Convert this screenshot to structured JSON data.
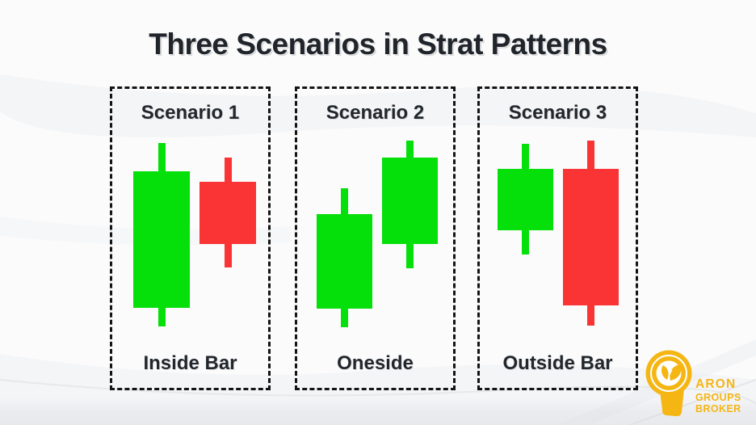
{
  "title": "Three Scenarios in Strat Patterns",
  "colors": {
    "green": "#05DF0A",
    "red": "#FA3434",
    "dark_text": "#22272D",
    "border": "#141414",
    "brand_yellow": "#F5B614"
  },
  "scenarios": [
    {
      "label": "Scenario 1",
      "pattern": "Inside Bar",
      "candles": [
        {
          "color": "green",
          "bx": 26,
          "bw": 70,
          "bt": 102,
          "bb": 271,
          "wt": 67,
          "wb": 294
        },
        {
          "color": "red",
          "bx": 108,
          "bw": 70,
          "bt": 115,
          "bb": 192,
          "wt": 85,
          "wb": 221
        }
      ]
    },
    {
      "label": "Scenario 2",
      "pattern": "Oneside",
      "candles": [
        {
          "color": "green",
          "bx": 24,
          "bw": 69,
          "bt": 155,
          "bb": 272,
          "wt": 123,
          "wb": 295
        },
        {
          "color": "green",
          "bx": 105,
          "bw": 69,
          "bt": 85,
          "bb": 192,
          "wt": 64,
          "wb": 222
        }
      ]
    },
    {
      "label": "Scenario 3",
      "pattern": "Outside Bar",
      "candles": [
        {
          "color": "green",
          "bx": 22,
          "bw": 69,
          "bt": 99,
          "bb": 175,
          "wt": 68,
          "wb": 205
        },
        {
          "color": "red",
          "bx": 103,
          "bw": 69,
          "bt": 99,
          "bb": 268,
          "wt": 64,
          "wb": 293
        }
      ]
    }
  ],
  "logo": {
    "brand_lines": [
      "ARON",
      "GROUPS",
      "BROKER"
    ]
  }
}
